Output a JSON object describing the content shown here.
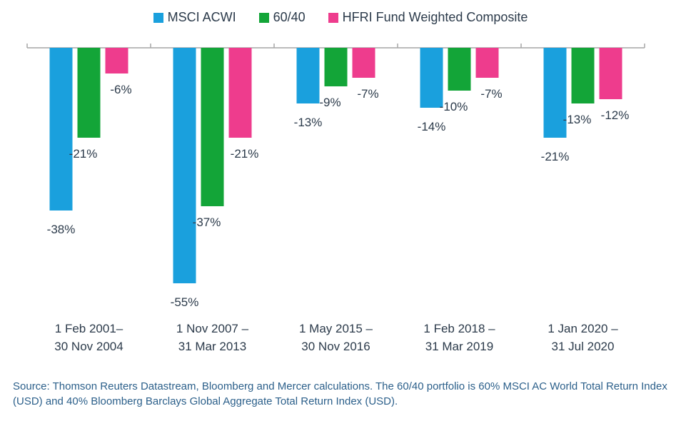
{
  "chart_data": {
    "type": "bar",
    "categories": [
      [
        "1 Feb 2001–",
        "30 Nov 2004"
      ],
      [
        "1 Nov 2007 –",
        "31 Mar 2013"
      ],
      [
        "1 May 2015 –",
        "30 Nov 2016"
      ],
      [
        "1 Feb 2018 –",
        "31 Mar 2019"
      ],
      [
        "1 Jan 2020 –",
        "31 Jul 2020"
      ]
    ],
    "series": [
      {
        "name": "MSCI ACWI",
        "color": "#1aa0dd",
        "values": [
          -38,
          -55,
          -13,
          -14,
          -21
        ],
        "labels": [
          "-38%",
          "-55%",
          "-13%",
          "-14%",
          "-21%"
        ]
      },
      {
        "name": "60/40",
        "color": "#13a538",
        "values": [
          -21,
          -37,
          -9,
          -10,
          -13
        ],
        "labels": [
          "-21%",
          "-37%",
          "-9%",
          "-10%",
          "-13%"
        ]
      },
      {
        "name": "HFRI Fund Weighted Composite",
        "color": "#ee3c8d",
        "values": [
          -6,
          -21,
          -7,
          -7,
          -12
        ],
        "labels": [
          "-6%",
          "-21%",
          "-7%",
          "-7%",
          "-12%"
        ]
      }
    ],
    "ylim": [
      -60,
      0
    ],
    "grid": false,
    "legend_position": "top-center",
    "axis_color": "#a6a6a6"
  },
  "source_note": "Source: Thomson Reuters Datastream, Bloomberg and Mercer calculations. The 60/40 portfolio is 60% MSCI AC World Total Return Index (USD) and 40% Bloomberg Barclays Global Aggregate Total Return Index (USD)."
}
